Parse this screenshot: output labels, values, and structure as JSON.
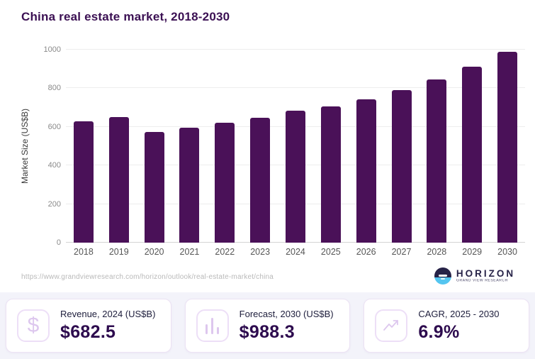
{
  "page": {
    "title": "China real estate market, 2018-2030",
    "source_url": "https://www.grandviewresearch.com/horizon/outlook/real-estate-market/china"
  },
  "logo": {
    "brand": "HORIZON",
    "tagline": "GRAND VIEW RESEARCH"
  },
  "chart_data": {
    "type": "bar",
    "title": "China real estate market, 2018-2030",
    "categories": [
      "2018",
      "2019",
      "2020",
      "2021",
      "2022",
      "2023",
      "2024",
      "2025",
      "2026",
      "2027",
      "2028",
      "2029",
      "2030"
    ],
    "values": [
      630,
      650,
      575,
      595,
      620,
      648,
      682.5,
      705,
      743,
      791,
      846,
      910,
      988.3
    ],
    "xlabel": "",
    "ylabel": "Market Size (US$B)",
    "yticks": [
      0,
      200,
      400,
      600,
      800,
      1000
    ],
    "ylim": [
      0,
      1000
    ],
    "bar_color": "#4a1158",
    "grid": true,
    "legend": false
  },
  "cards": [
    {
      "icon": "dollar-icon",
      "label": "Revenue, 2024 (US$B)",
      "value": "$682.5"
    },
    {
      "icon": "bar-chart-icon",
      "label": "Forecast, 2030 (US$B)",
      "value": "$988.3"
    },
    {
      "icon": "trend-up-icon",
      "label": "CAGR, 2025 - 2030",
      "value": "6.9%"
    }
  ]
}
